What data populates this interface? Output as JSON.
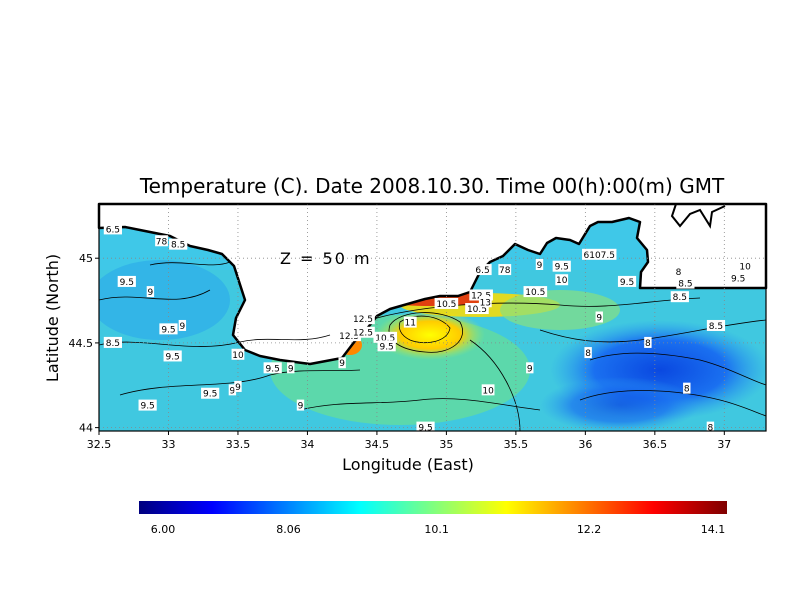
{
  "chart_data": {
    "type": "heatmap",
    "title": "Temperature (C). Date 2008.10.30. Time 00(h):00(m) GMT",
    "xlabel": "Longitude (East)",
    "ylabel": "Latitude (North)",
    "annotation": "Z = 50 m",
    "xlim": [
      32.5,
      37.3
    ],
    "ylim": [
      43.98,
      45.32
    ],
    "x_ticks": [
      {
        "value": 32.5,
        "label": "32.5"
      },
      {
        "value": 33,
        "label": "33"
      },
      {
        "value": 33.5,
        "label": "33.5"
      },
      {
        "value": 34,
        "label": "34"
      },
      {
        "value": 34.5,
        "label": "34.5"
      },
      {
        "value": 35,
        "label": "35"
      },
      {
        "value": 35.5,
        "label": "35.5"
      },
      {
        "value": 36,
        "label": "36"
      },
      {
        "value": 36.5,
        "label": "36.5"
      },
      {
        "value": 37,
        "label": "37"
      }
    ],
    "y_ticks": [
      {
        "value": 44,
        "label": "44"
      },
      {
        "value": 44.5,
        "label": "44.5"
      },
      {
        "value": 45,
        "label": "45"
      }
    ],
    "grid": true,
    "colorbar": {
      "min": 6.0,
      "max": 14.1,
      "tick_labels": [
        {
          "value": 6.0,
          "label": "6.00"
        },
        {
          "value": 8.06,
          "label": "8.06"
        },
        {
          "value": 10.1,
          "label": "10.1"
        },
        {
          "value": 12.2,
          "label": "12.2"
        },
        {
          "value": 14.1,
          "label": "14.1"
        }
      ]
    },
    "contour_labels": [
      {
        "lon": 32.6,
        "lat": 45.17,
        "text": "6.5"
      },
      {
        "lon": 32.95,
        "lat": 45.1,
        "text": "78"
      },
      {
        "lon": 33.07,
        "lat": 45.08,
        "text": "8.5"
      },
      {
        "lon": 32.7,
        "lat": 44.86,
        "text": "9.5"
      },
      {
        "lon": 32.87,
        "lat": 44.8,
        "text": "9"
      },
      {
        "lon": 33.0,
        "lat": 44.58,
        "text": "9.5"
      },
      {
        "lon": 33.1,
        "lat": 44.6,
        "text": "9"
      },
      {
        "lon": 32.6,
        "lat": 44.5,
        "text": "8.5"
      },
      {
        "lon": 33.03,
        "lat": 44.42,
        "text": "9.5"
      },
      {
        "lon": 32.85,
        "lat": 44.13,
        "text": "9.5"
      },
      {
        "lon": 33.3,
        "lat": 44.2,
        "text": "9.5"
      },
      {
        "lon": 33.46,
        "lat": 44.22,
        "text": "9"
      },
      {
        "lon": 33.5,
        "lat": 44.24,
        "text": "9"
      },
      {
        "lon": 33.5,
        "lat": 44.43,
        "text": "10"
      },
      {
        "lon": 33.75,
        "lat": 44.35,
        "text": "9.5"
      },
      {
        "lon": 33.88,
        "lat": 44.35,
        "text": "9"
      },
      {
        "lon": 33.95,
        "lat": 44.13,
        "text": "9"
      },
      {
        "lon": 34.25,
        "lat": 44.38,
        "text": "9"
      },
      {
        "lon": 34.3,
        "lat": 44.54,
        "text": "12.5"
      },
      {
        "lon": 34.4,
        "lat": 44.56,
        "text": "12.5"
      },
      {
        "lon": 34.4,
        "lat": 44.64,
        "text": "12.5"
      },
      {
        "lon": 34.56,
        "lat": 44.53,
        "text": "10.5"
      },
      {
        "lon": 34.57,
        "lat": 44.48,
        "text": "9.5"
      },
      {
        "lon": 34.74,
        "lat": 44.62,
        "text": "11"
      },
      {
        "lon": 35.0,
        "lat": 44.73,
        "text": "10.5"
      },
      {
        "lon": 35.22,
        "lat": 44.7,
        "text": "10.5"
      },
      {
        "lon": 35.25,
        "lat": 44.78,
        "text": "12.5"
      },
      {
        "lon": 35.28,
        "lat": 44.74,
        "text": "13"
      },
      {
        "lon": 35.26,
        "lat": 44.93,
        "text": "6.5"
      },
      {
        "lon": 35.42,
        "lat": 44.93,
        "text": "78"
      },
      {
        "lon": 35.64,
        "lat": 44.8,
        "text": "10.5"
      },
      {
        "lon": 35.67,
        "lat": 44.96,
        "text": "9"
      },
      {
        "lon": 35.83,
        "lat": 44.95,
        "text": "9.5"
      },
      {
        "lon": 35.83,
        "lat": 44.87,
        "text": "10"
      },
      {
        "lon": 36.1,
        "lat": 45.02,
        "text": "6107.5"
      },
      {
        "lon": 36.3,
        "lat": 44.86,
        "text": "9.5"
      },
      {
        "lon": 36.67,
        "lat": 44.92,
        "text": "8"
      },
      {
        "lon": 36.72,
        "lat": 44.85,
        "text": "8.5"
      },
      {
        "lon": 36.68,
        "lat": 44.77,
        "text": "8.5"
      },
      {
        "lon": 37.15,
        "lat": 44.95,
        "text": "10"
      },
      {
        "lon": 37.1,
        "lat": 44.88,
        "text": "9.5"
      },
      {
        "lon": 36.94,
        "lat": 44.6,
        "text": "8.5"
      },
      {
        "lon": 36.1,
        "lat": 44.65,
        "text": "9"
      },
      {
        "lon": 36.45,
        "lat": 44.5,
        "text": "8"
      },
      {
        "lon": 36.02,
        "lat": 44.44,
        "text": "8"
      },
      {
        "lon": 35.6,
        "lat": 44.35,
        "text": "9"
      },
      {
        "lon": 36.73,
        "lat": 44.23,
        "text": "8"
      },
      {
        "lon": 35.3,
        "lat": 44.22,
        "text": "10"
      },
      {
        "lon": 34.85,
        "lat": 44.0,
        "text": "9.5"
      },
      {
        "lon": 36.9,
        "lat": 44.0,
        "text": "8"
      }
    ],
    "colors": {
      "land": "#ffffff",
      "coast": "#000000",
      "grid": "#888888"
    }
  }
}
